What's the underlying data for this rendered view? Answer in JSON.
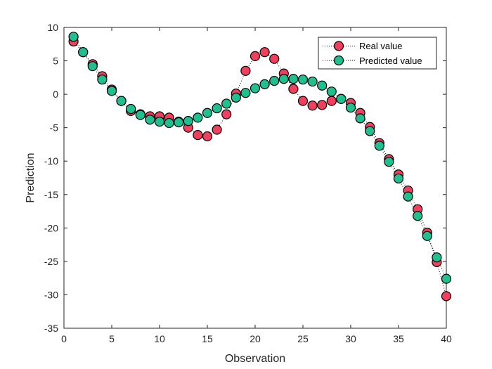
{
  "chart_data": {
    "type": "scatter",
    "title": "",
    "xlabel": "Observation",
    "ylabel": "Prediction",
    "xlim": [
      0,
      40
    ],
    "ylim": [
      -35,
      10
    ],
    "xticks": [
      0,
      5,
      10,
      15,
      20,
      25,
      30,
      35,
      40
    ],
    "yticks": [
      10,
      5,
      0,
      -5,
      -10,
      -15,
      -20,
      -25,
      -30,
      -35
    ],
    "grid": false,
    "legend_position": "top-right",
    "x": [
      1,
      2,
      3,
      4,
      5,
      6,
      7,
      8,
      9,
      10,
      11,
      12,
      13,
      14,
      15,
      16,
      17,
      18,
      19,
      20,
      21,
      22,
      23,
      24,
      25,
      26,
      27,
      28,
      29,
      30,
      31,
      32,
      33,
      34,
      35,
      36,
      37,
      38,
      39,
      40
    ],
    "series": [
      {
        "name": "Real value",
        "color": "#f0405e",
        "line_style": "dotted",
        "values": [
          7.9,
          6.3,
          4.5,
          2.7,
          0.7,
          -1.0,
          -2.5,
          -3.0,
          -3.3,
          -3.3,
          -3.5,
          -4.1,
          -5.0,
          -6.1,
          -6.3,
          -5.3,
          -3.0,
          0.1,
          3.5,
          5.7,
          6.3,
          5.3,
          3.1,
          0.8,
          -1.0,
          -1.7,
          -1.6,
          -1.0,
          -0.7,
          -1.3,
          -2.8,
          -4.9,
          -7.3,
          -9.7,
          -12.0,
          -14.4,
          -17.2,
          -20.7,
          -25.1,
          -30.2
        ]
      },
      {
        "name": "Predicted value",
        "color": "#1fbf8f",
        "line_style": "dotted",
        "values": [
          8.6,
          6.3,
          4.2,
          2.2,
          0.5,
          -1.0,
          -2.2,
          -3.1,
          -3.8,
          -4.1,
          -4.3,
          -4.2,
          -4.0,
          -3.5,
          -2.8,
          -2.1,
          -1.4,
          -0.5,
          0.2,
          0.9,
          1.5,
          2.0,
          2.3,
          2.3,
          2.2,
          1.9,
          1.3,
          0.4,
          -0.7,
          -2.0,
          -3.6,
          -5.5,
          -7.7,
          -10.1,
          -12.6,
          -15.3,
          -18.2,
          -21.2,
          -24.4,
          -27.6
        ]
      }
    ]
  }
}
